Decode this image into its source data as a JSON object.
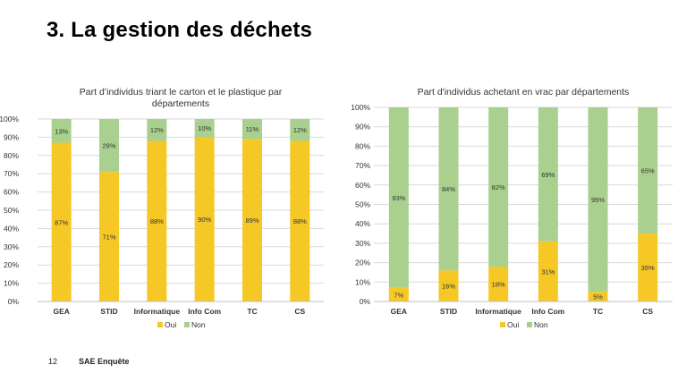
{
  "slide": {
    "title": "3. La gestion des déchets",
    "page_number": "12",
    "footer": "SAE Enquête"
  },
  "colors": {
    "oui": "#f5c826",
    "non": "#a9d08e",
    "grid": "#d9d9d9",
    "text": "#333333"
  },
  "chart_data": [
    {
      "type": "bar",
      "stacked": true,
      "title": "Part d’individus triant le carton et le plastique par départements",
      "title_lines": [
        "Part d’individus triant le carton et le plastique par",
        "départements"
      ],
      "categories": [
        "GEA",
        "STID",
        "Informatique",
        "Info Com",
        "TC",
        "CS"
      ],
      "series": [
        {
          "name": "Oui",
          "values": [
            87,
            71,
            88,
            90,
            89,
            88
          ],
          "labels": [
            "87%",
            "71%",
            "88%",
            "90%",
            "89%",
            "88%"
          ]
        },
        {
          "name": "Non",
          "values": [
            13,
            29,
            12,
            10,
            11,
            12
          ],
          "labels": [
            "13%",
            "29%",
            "12%",
            "10%",
            "11%",
            "12%"
          ]
        }
      ],
      "ylim": [
        0,
        100
      ],
      "yticks": [
        "0%",
        "10%",
        "20%",
        "30%",
        "40%",
        "50%",
        "60%",
        "70%",
        "80%",
        "90%",
        "100%"
      ],
      "grid": true,
      "legend": "bottom"
    },
    {
      "type": "bar",
      "stacked": true,
      "title": "Part d'individus achetant en vrac par départements",
      "title_lines": [
        "Part d'individus achetant en vrac par départements"
      ],
      "categories": [
        "GEA",
        "STID",
        "Informatique",
        "Info Com",
        "TC",
        "CS"
      ],
      "series": [
        {
          "name": "Oui",
          "values": [
            7,
            16,
            18,
            31,
            5,
            35
          ],
          "labels": [
            "7%",
            "16%",
            "18%",
            "31%",
            "5%",
            "35%"
          ]
        },
        {
          "name": "Non",
          "values": [
            93,
            84,
            82,
            69,
            95,
            65
          ],
          "labels": [
            "93%",
            "84%",
            "82%",
            "69%",
            "95%",
            "65%"
          ]
        }
      ],
      "ylim": [
        0,
        100
      ],
      "yticks": [
        "0%",
        "10%",
        "20%",
        "30%",
        "40%",
        "50%",
        "60%",
        "70%",
        "80%",
        "90%",
        "100%"
      ],
      "grid": true,
      "legend": "bottom"
    }
  ]
}
